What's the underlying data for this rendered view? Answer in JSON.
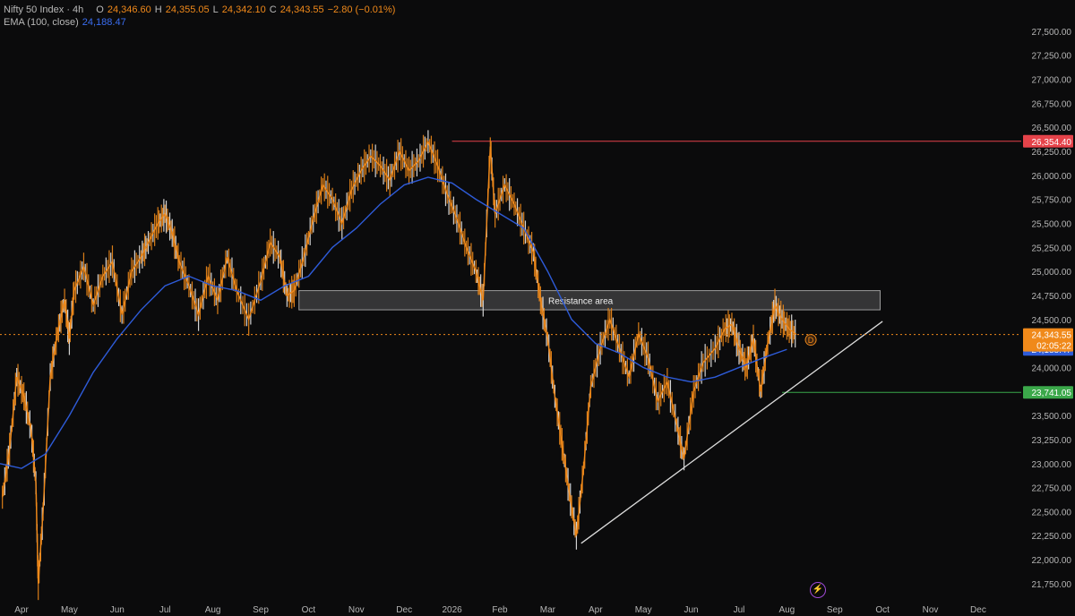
{
  "legend": {
    "symbol": "Nifty 50 Index · 4h",
    "open_label": "O",
    "open": "24,346.60",
    "high_label": "H",
    "high": "24,355.05",
    "low_label": "L",
    "low": "24,342.10",
    "close_label": "C",
    "close": "24,343.55",
    "change": "−2.80 (−0.01%)",
    "ema_label": "EMA (100, close)",
    "ema_value": "24,188.47"
  },
  "price_badges": {
    "last_price": "24,343.55",
    "countdown": "02:05:22",
    "ema": "24,188.47",
    "resistance_top": "26,354.40",
    "support": "23,741.05"
  },
  "annotations": {
    "resistance_area": "Resistance area",
    "event_marker": "D"
  },
  "colors": {
    "background": "#0b0b0c",
    "candle": "#f0891a",
    "candle_alt": "#e8e8e8",
    "ema": "#2e5bd8",
    "red_line": "#e5434a",
    "green_line": "#3ba84a",
    "trendline": "#dcdcdc",
    "zone_fill": "#5a5a5a",
    "axis_text": "#b5b5b5"
  },
  "chart_data": {
    "type": "line",
    "title": "Nifty 50 Index · 4h",
    "xlabel": "",
    "ylabel": "",
    "ylim": [
      21600,
      27750
    ],
    "y_ticks": [
      "27,500.00",
      "27,250.00",
      "27,000.00",
      "26,750.00",
      "26,500.00",
      "26,250.00",
      "26,000.00",
      "25,750.00",
      "25,500.00",
      "25,250.00",
      "25,000.00",
      "24,750.00",
      "24,500.00",
      "24,250.00",
      "24,000.00",
      "23,750.00",
      "23,500.00",
      "23,250.00",
      "23,000.00",
      "22,750.00",
      "22,500.00",
      "22,250.00",
      "22,000.00",
      "21,750.00"
    ],
    "y_tick_values": [
      27500,
      27250,
      27000,
      26750,
      26500,
      26250,
      26000,
      25750,
      25500,
      25250,
      25000,
      24750,
      24500,
      24250,
      24000,
      23750,
      23500,
      23250,
      23000,
      22750,
      22500,
      22250,
      22000,
      21750
    ],
    "x_ticks": [
      "Apr",
      "May",
      "Jun",
      "Jul",
      "Aug",
      "Sep",
      "Oct",
      "Nov",
      "Dec",
      "2026",
      "Feb",
      "Mar",
      "Apr",
      "May",
      "Jun",
      "Jul",
      "Aug",
      "Sep",
      "Oct",
      "Nov",
      "Dec"
    ],
    "x_tick_months": [
      0,
      1,
      2,
      3,
      4,
      5,
      6,
      7,
      8,
      9,
      10,
      11,
      12,
      13,
      14,
      15,
      16,
      17,
      18,
      19,
      20
    ],
    "month_range": [
      -0.45,
      20.9
    ],
    "series": [
      {
        "name": "Nifty 50 Index",
        "kind": "price",
        "points": [
          [
            -0.4,
            22650
          ],
          [
            -0.25,
            23150
          ],
          [
            -0.1,
            23900
          ],
          [
            0.05,
            23700
          ],
          [
            0.2,
            23350
          ],
          [
            0.3,
            22800
          ],
          [
            0.35,
            21750
          ],
          [
            0.45,
            22500
          ],
          [
            0.6,
            23900
          ],
          [
            0.75,
            24350
          ],
          [
            0.9,
            24700
          ],
          [
            1.0,
            24300
          ],
          [
            1.1,
            24800
          ],
          [
            1.3,
            25050
          ],
          [
            1.5,
            24650
          ],
          [
            1.7,
            24950
          ],
          [
            1.9,
            25100
          ],
          [
            2.1,
            24550
          ],
          [
            2.3,
            25000
          ],
          [
            2.5,
            25150
          ],
          [
            2.65,
            25300
          ],
          [
            2.85,
            25500
          ],
          [
            3.0,
            25600
          ],
          [
            3.15,
            25400
          ],
          [
            3.3,
            25100
          ],
          [
            3.5,
            24850
          ],
          [
            3.7,
            24550
          ],
          [
            3.9,
            24950
          ],
          [
            4.1,
            24700
          ],
          [
            4.3,
            25150
          ],
          [
            4.5,
            24800
          ],
          [
            4.75,
            24500
          ],
          [
            5.0,
            24900
          ],
          [
            5.2,
            25300
          ],
          [
            5.4,
            25150
          ],
          [
            5.55,
            24750
          ],
          [
            5.7,
            24800
          ],
          [
            5.9,
            25150
          ],
          [
            6.1,
            25550
          ],
          [
            6.3,
            25900
          ],
          [
            6.5,
            25750
          ],
          [
            6.7,
            25500
          ],
          [
            6.9,
            25850
          ],
          [
            7.1,
            26050
          ],
          [
            7.3,
            26200
          ],
          [
            7.5,
            26100
          ],
          [
            7.7,
            25950
          ],
          [
            7.9,
            26250
          ],
          [
            8.1,
            26050
          ],
          [
            8.3,
            26150
          ],
          [
            8.5,
            26350
          ],
          [
            8.7,
            26100
          ],
          [
            8.9,
            25800
          ],
          [
            9.1,
            25550
          ],
          [
            9.3,
            25250
          ],
          [
            9.5,
            25000
          ],
          [
            9.65,
            24700
          ],
          [
            9.8,
            26300
          ],
          [
            9.9,
            25600
          ],
          [
            10.1,
            25900
          ],
          [
            10.3,
            25700
          ],
          [
            10.5,
            25450
          ],
          [
            10.7,
            25200
          ],
          [
            10.85,
            24700
          ],
          [
            11.0,
            24300
          ],
          [
            11.15,
            23700
          ],
          [
            11.3,
            23200
          ],
          [
            11.45,
            22700
          ],
          [
            11.6,
            22250
          ],
          [
            11.75,
            22950
          ],
          [
            11.9,
            23800
          ],
          [
            12.1,
            24200
          ],
          [
            12.3,
            24500
          ],
          [
            12.5,
            24200
          ],
          [
            12.7,
            23900
          ],
          [
            12.9,
            24350
          ],
          [
            13.1,
            24100
          ],
          [
            13.3,
            23650
          ],
          [
            13.5,
            23850
          ],
          [
            13.7,
            23400
          ],
          [
            13.85,
            23050
          ],
          [
            14.05,
            23750
          ],
          [
            14.25,
            24050
          ],
          [
            14.5,
            24200
          ],
          [
            14.7,
            24400
          ],
          [
            14.85,
            24450
          ],
          [
            15.0,
            24200
          ],
          [
            15.15,
            24000
          ],
          [
            15.3,
            24300
          ],
          [
            15.45,
            23750
          ],
          [
            15.6,
            24250
          ],
          [
            15.75,
            24650
          ],
          [
            15.9,
            24500
          ],
          [
            16.05,
            24400
          ],
          [
            16.2,
            24343
          ]
        ]
      },
      {
        "name": "EMA (100, close)",
        "kind": "ema",
        "points": [
          [
            -0.45,
            23000
          ],
          [
            0.0,
            22950
          ],
          [
            0.5,
            23100
          ],
          [
            1.0,
            23500
          ],
          [
            1.5,
            23950
          ],
          [
            2.0,
            24300
          ],
          [
            2.5,
            24600
          ],
          [
            3.0,
            24850
          ],
          [
            3.5,
            24950
          ],
          [
            4.0,
            24850
          ],
          [
            4.5,
            24800
          ],
          [
            5.0,
            24700
          ],
          [
            5.5,
            24850
          ],
          [
            6.0,
            24950
          ],
          [
            6.5,
            25250
          ],
          [
            7.0,
            25450
          ],
          [
            7.5,
            25700
          ],
          [
            8.0,
            25900
          ],
          [
            8.5,
            25980
          ],
          [
            9.0,
            25920
          ],
          [
            9.5,
            25750
          ],
          [
            10.0,
            25600
          ],
          [
            10.5,
            25450
          ],
          [
            11.0,
            25000
          ],
          [
            11.5,
            24500
          ],
          [
            12.0,
            24250
          ],
          [
            12.5,
            24150
          ],
          [
            13.0,
            24000
          ],
          [
            13.5,
            23900
          ],
          [
            14.0,
            23850
          ],
          [
            14.5,
            23900
          ],
          [
            15.0,
            24000
          ],
          [
            15.5,
            24100
          ],
          [
            16.0,
            24188
          ]
        ]
      }
    ],
    "levels": [
      {
        "label": "26,354.40",
        "value": 26354.4,
        "from_month": 9.0
      },
      {
        "label": "23,741.05",
        "value": 23741.05,
        "from_month": 15.9
      }
    ],
    "resistance_zone": {
      "label": "Resistance area",
      "from_month": 5.8,
      "to_month": 17.95,
      "low": 24600,
      "high": 24800
    },
    "trendline": {
      "from": [
        11.7,
        22170
      ],
      "to": [
        18.0,
        24480
      ]
    },
    "last_price": 24343.55
  }
}
